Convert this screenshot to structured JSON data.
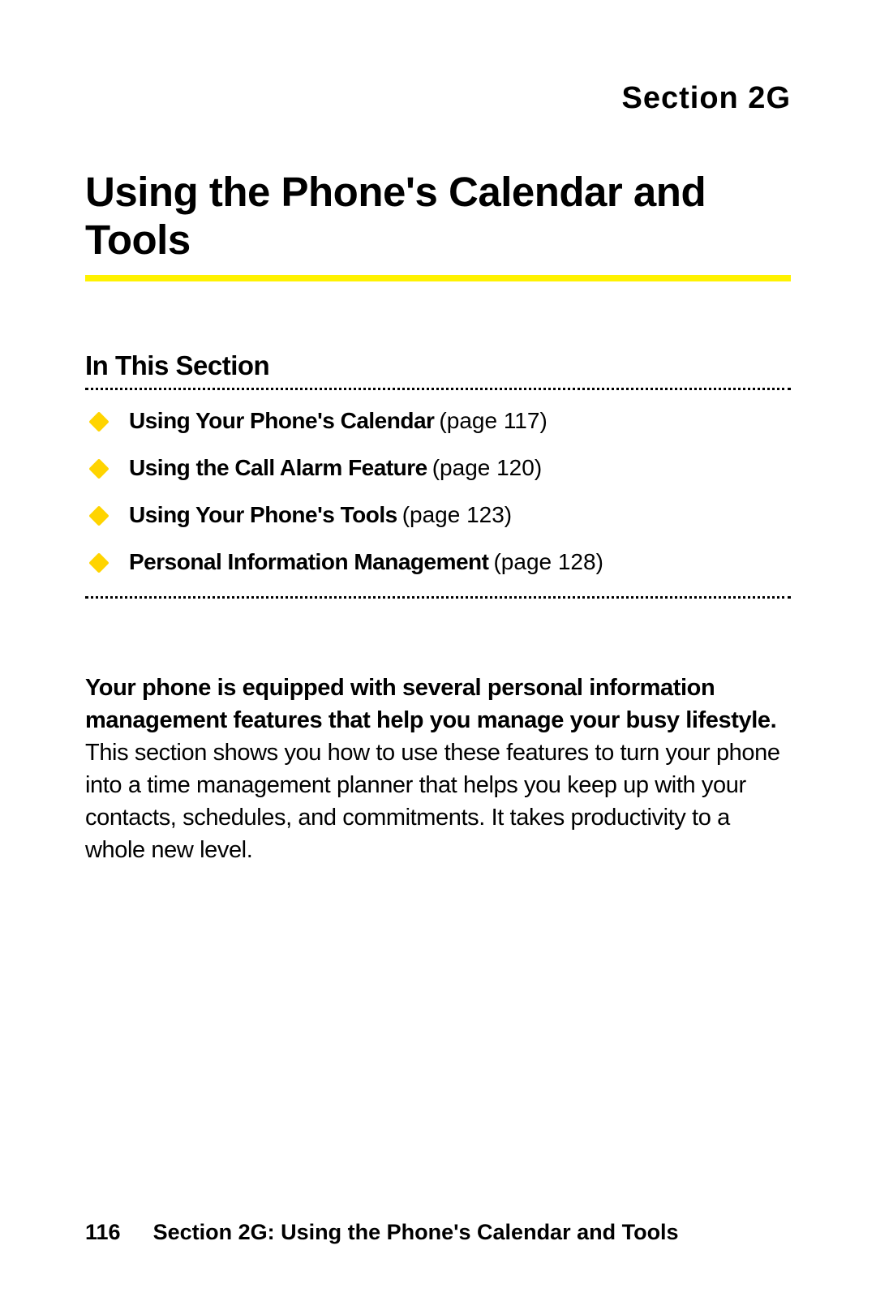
{
  "colors": {
    "accent_yellow": "#fff200",
    "bullet_yellow": "#ffd400",
    "text": "#000000",
    "background": "#ffffff"
  },
  "header": {
    "section_label": "Section 2G"
  },
  "title": "Using the Phone's Calendar and Tools",
  "subheading": "In This Section",
  "toc": [
    {
      "title": "Using Your Phone's Calendar",
      "page_ref": "(page 117)"
    },
    {
      "title": "Using the Call Alarm Feature",
      "page_ref": "(page 120)"
    },
    {
      "title": "Using Your Phone's Tools",
      "page_ref": "(page 123)"
    },
    {
      "title": "Personal Information Management",
      "page_ref": "(page 128)"
    }
  ],
  "paragraph": {
    "lead": "Your phone is equipped with several personal information management features that help you manage your busy lifestyle.",
    "rest": " This section shows you how to use these features to turn your phone into a time management planner that helps you keep up with your contacts, schedules, and commitments. It takes productivity to a whole new level."
  },
  "footer": {
    "page_number": "116",
    "text": "Section 2G: Using the Phone's Calendar and Tools"
  }
}
